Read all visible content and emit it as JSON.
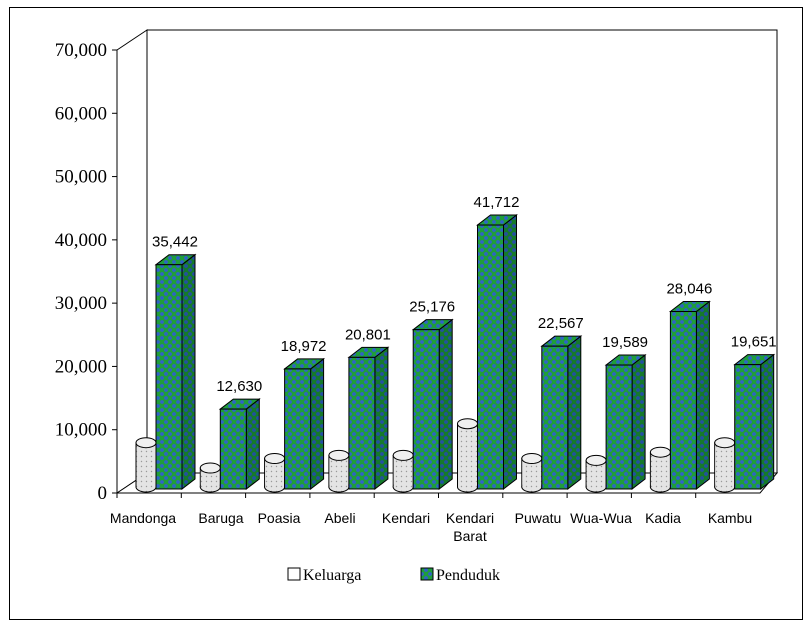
{
  "chart_data": {
    "type": "bar",
    "categories": [
      "Mandonga",
      "Baruga",
      "Poasia",
      "Abeli",
      "Kendari",
      "Kendari Barat",
      "Puwatu",
      "Wua-Wua",
      "Kadia",
      "Kambu"
    ],
    "series": [
      {
        "name": "Keluarga",
        "values": [
          7000,
          3000,
          4500,
          5000,
          5000,
          10000,
          4500,
          4200,
          5500,
          7000
        ],
        "color": "#d9d9d9",
        "style": "cylinder"
      },
      {
        "name": "Penduduk",
        "values": [
          35442,
          12630,
          18972,
          20801,
          25176,
          41712,
          22567,
          19589,
          28046,
          19651
        ],
        "data_labels": [
          "35,442",
          "12,630",
          "18,972",
          "20,801",
          "25,176",
          "41,712",
          "22,567",
          "19,589",
          "28,046",
          "19,651"
        ],
        "color": "#1f9e3a",
        "pattern_color": "#2f63c8",
        "style": "box"
      }
    ],
    "ylim": [
      0,
      70000
    ],
    "yticks": [
      "0",
      "10,000",
      "20,000",
      "30,000",
      "40,000",
      "50,000",
      "60,000",
      "70,000"
    ],
    "ytick_values": [
      0,
      10000,
      20000,
      30000,
      40000,
      50000,
      60000,
      70000
    ],
    "grid": false,
    "legend_position": "bottom",
    "three_d": true
  }
}
